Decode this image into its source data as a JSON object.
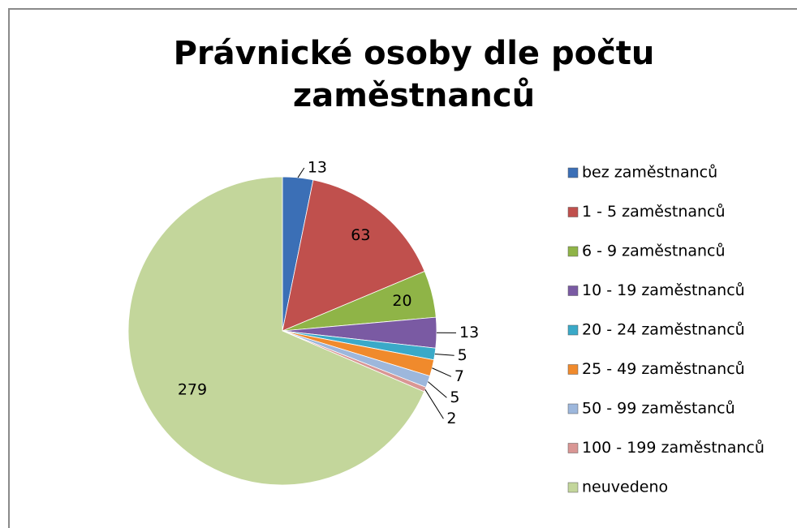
{
  "chart_data": {
    "type": "pie",
    "title": "Právnické osoby dle počtu zaměstnanců",
    "categories": [
      "bez zaměstnanců",
      "1 - 5 zaměstnanců",
      "6 - 9 zaměstnanců",
      "10 - 19 zaměstnanců",
      "20 - 24 zaměstnanců",
      "25 - 49 zaměstnanců",
      "50 - 99 zaměstanců",
      "100 - 199 zaměstnanců",
      "neuvedeno"
    ],
    "values": [
      13,
      63,
      20,
      13,
      5,
      7,
      5,
      2,
      279
    ],
    "colors": [
      "#3b6fb6",
      "#c0504d",
      "#8fb447",
      "#7a5aa3",
      "#3aa9c8",
      "#f08a2c",
      "#9db7dc",
      "#d99694",
      "#c3d69b"
    ],
    "legend": "right"
  }
}
